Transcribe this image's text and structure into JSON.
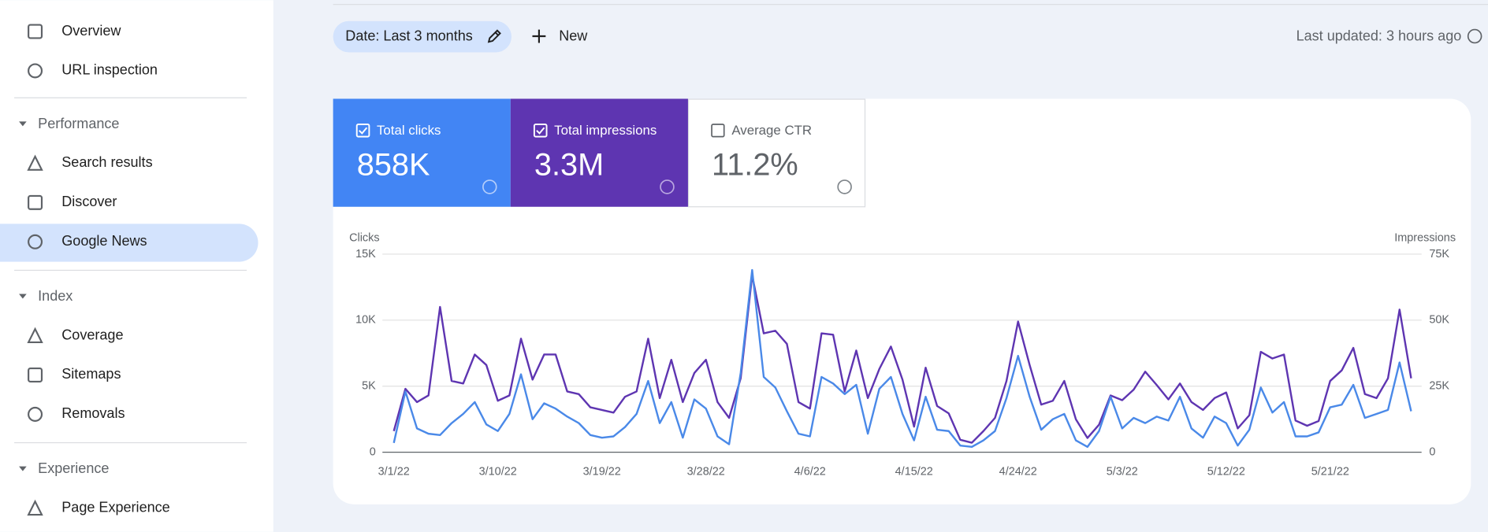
{
  "sidebar": {
    "top": [
      "Overview",
      "URL inspection"
    ],
    "sections": [
      {
        "title": "Performance",
        "items": [
          "Search results",
          "Discover",
          "Google News"
        ]
      },
      {
        "title": "Index",
        "items": [
          "Coverage",
          "Sitemaps",
          "Removals"
        ]
      },
      {
        "title": "Experience",
        "items": [
          "Page Experience"
        ]
      }
    ]
  },
  "toolbar": {
    "date_filter": "Date: Last 3 months",
    "new_button": "New",
    "last_updated": "Last updated: 3 hours ago"
  },
  "metrics": [
    {
      "value": "858K"
    },
    {
      "value": "3.3M"
    },
    {
      "label": "Average CTR",
      "value": "11.2%"
    }
  ],
  "chart_data": {
    "type": "line",
    "y_label": "Clicks",
    "y2_label": "Impressions",
    "categories": [
      "3/1/22",
      null,
      null,
      null,
      null,
      null,
      null,
      null,
      null,
      "3/10/22",
      null,
      null,
      null,
      null,
      null,
      null,
      null,
      null,
      "3/19/22",
      null,
      null,
      null,
      null,
      null,
      null,
      null,
      null,
      "3/28/22",
      null,
      null,
      null,
      null,
      null,
      null,
      null,
      null,
      "4/6/22",
      null,
      null,
      null,
      null,
      null,
      null,
      null,
      null,
      "4/15/22",
      null,
      null,
      null,
      null,
      null,
      null,
      null,
      null,
      "4/24/22",
      null,
      null,
      null,
      null,
      null,
      null,
      null,
      null,
      "5/3/22",
      null,
      null,
      null,
      null,
      null,
      null,
      null,
      null,
      "5/12/22",
      null,
      null,
      null,
      null,
      null,
      null,
      null,
      null,
      "5/21/22",
      null,
      null,
      null,
      null,
      null,
      null,
      null
    ],
    "series": [
      {
        "name": "Total clicks",
        "color": "#4a89e8",
        "values": [
          700,
          4600,
          1800,
          1400,
          1300,
          2200,
          2900,
          3800,
          2100,
          1600,
          2900,
          5900,
          2500,
          3700,
          3300,
          2700,
          2200,
          1300,
          1100,
          1200,
          1900,
          2900,
          5400,
          2200,
          3800,
          1100,
          4000,
          3300,
          1200,
          600,
          6000,
          13800,
          5700,
          4900,
          3100,
          1400,
          1200,
          5700,
          5200,
          4400,
          5100,
          1400,
          4800,
          5700,
          2900,
          900,
          4200,
          1700,
          1600,
          500,
          400,
          900,
          1600,
          4100,
          7300,
          4200,
          1700,
          2500,
          2900,
          900,
          400,
          1600,
          4200,
          1800,
          2600,
          2200,
          2700,
          2400,
          4200,
          1800,
          1100,
          2700,
          2200,
          500,
          1700,
          4900,
          3000,
          3800,
          1200,
          1200,
          1500,
          3400,
          3600,
          5100,
          2600,
          2900,
          3200,
          6800,
          3100
        ]
      },
      {
        "name": "Total impressions",
        "color": "#5e35b1",
        "axis": "y2",
        "values": [
          8000,
          24000,
          19000,
          21500,
          55000,
          27000,
          26000,
          37000,
          33000,
          19500,
          21500,
          43000,
          27500,
          37000,
          37000,
          23000,
          22000,
          17000,
          16000,
          15000,
          21000,
          23000,
          43000,
          20500,
          35000,
          19000,
          30000,
          35000,
          19000,
          13000,
          28000,
          67000,
          45000,
          46000,
          41000,
          19000,
          16500,
          45000,
          44500,
          23000,
          38500,
          20500,
          31500,
          40000,
          27500,
          9700,
          32000,
          17500,
          14700,
          4700,
          3600,
          8000,
          13000,
          27000,
          49500,
          33000,
          18000,
          19500,
          27000,
          12500,
          5400,
          10400,
          21500,
          19700,
          23700,
          30500,
          25400,
          20000,
          26000,
          19000,
          16000,
          20500,
          22600,
          9000,
          14000,
          38000,
          35500,
          37000,
          12000,
          10000,
          11800,
          27000,
          31000,
          39500,
          22000,
          20500,
          28000,
          54000,
          28000
        ]
      }
    ],
    "ylim": [
      0,
      15000
    ],
    "yticks": [
      0,
      {
        "value": 5000,
        "label": "5K"
      },
      {
        "value": 10000,
        "label": "10K"
      },
      {
        "value": 15000,
        "label": "15K"
      }
    ],
    "y2lim": [
      0,
      75000
    ],
    "y2ticks": [
      0,
      {
        "value": 25000,
        "label": "25K"
      },
      {
        "value": 50000,
        "label": "50K"
      },
      {
        "value": 75000,
        "label": "75K"
      }
    ],
    "grid": true
  }
}
